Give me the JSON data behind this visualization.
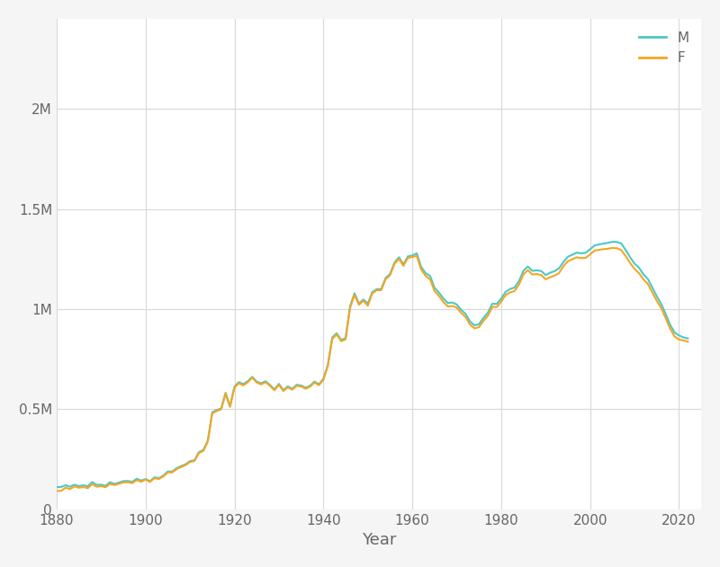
{
  "title": "",
  "xlabel": "Year",
  "ylabel": "",
  "background_color": "#f5f5f5",
  "plot_bg_color": "#ffffff",
  "grid_color": "#d8d8d8",
  "line_color_M": "#4bc8c8",
  "line_color_F": "#f5a623",
  "line_width": 1.5,
  "legend_labels": [
    "M",
    "F"
  ],
  "xlim": [
    1880,
    2025
  ],
  "ylim": [
    0,
    2450000
  ],
  "yticks": [
    0,
    500000,
    1000000,
    1500000,
    2000000
  ],
  "ytick_labels": [
    "0",
    "0.5M",
    "1M",
    "1.5M",
    "2M"
  ],
  "xticks": [
    1880,
    1900,
    1920,
    1940,
    1960,
    1980,
    2000,
    2020
  ],
  "years": [
    1880,
    1881,
    1882,
    1883,
    1884,
    1885,
    1886,
    1887,
    1888,
    1889,
    1890,
    1891,
    1892,
    1893,
    1894,
    1895,
    1896,
    1897,
    1898,
    1899,
    1900,
    1901,
    1902,
    1903,
    1904,
    1905,
    1906,
    1907,
    1908,
    1909,
    1910,
    1911,
    1912,
    1913,
    1914,
    1915,
    1916,
    1917,
    1918,
    1919,
    1920,
    1921,
    1922,
    1923,
    1924,
    1925,
    1926,
    1927,
    1928,
    1929,
    1930,
    1931,
    1932,
    1933,
    1934,
    1935,
    1936,
    1937,
    1938,
    1939,
    1940,
    1941,
    1942,
    1943,
    1944,
    1945,
    1946,
    1947,
    1948,
    1949,
    1950,
    1951,
    1952,
    1953,
    1954,
    1955,
    1956,
    1957,
    1958,
    1959,
    1960,
    1961,
    1962,
    1963,
    1964,
    1965,
    1966,
    1967,
    1968,
    1969,
    1970,
    1971,
    1972,
    1973,
    1974,
    1975,
    1976,
    1977,
    1978,
    1979,
    1980,
    1981,
    1982,
    1983,
    1984,
    1985,
    1986,
    1987,
    1988,
    1989,
    1990,
    1991,
    1992,
    1993,
    1994,
    1995,
    1996,
    1997,
    1998,
    1999,
    2000,
    2001,
    2002,
    2003,
    2004,
    2005,
    2006,
    2007,
    2008,
    2009,
    2010,
    2011,
    2012,
    2013,
    2014,
    2015,
    2016,
    2017,
    2018,
    2019,
    2020,
    2021,
    2022
  ],
  "values_M": [
    110491,
    111533,
    120068,
    112487,
    122745,
    115957,
    119861,
    115216,
    136238,
    122037,
    122742,
    117196,
    134924,
    126862,
    132973,
    140619,
    141358,
    136935,
    152475,
    143194,
    150948,
    140424,
    159666,
    155434,
    168392,
    188516,
    188657,
    205187,
    215661,
    224805,
    240413,
    245090,
    285416,
    295741,
    343337,
    484551,
    495762,
    503015,
    581806,
    514900,
    612473,
    635017,
    625229,
    639869,
    661684,
    637434,
    629609,
    639278,
    620804,
    598555,
    626574,
    595065,
    614025,
    602016,
    621937,
    618097,
    606744,
    617356,
    637498,
    624617,
    651668,
    720503,
    858900,
    879268,
    845348,
    855104,
    1013534,
    1079024,
    1027474,
    1047438,
    1027009,
    1084527,
    1099264,
    1099513,
    1155299,
    1175661,
    1232462,
    1258563,
    1222637,
    1263197,
    1267362,
    1278618,
    1210668,
    1179082,
    1165441,
    1106745,
    1082682,
    1052616,
    1030082,
    1032498,
    1022929,
    995706,
    975393,
    937282,
    918784,
    924048,
    955793,
    981685,
    1026491,
    1025540,
    1052289,
    1086013,
    1100143,
    1107539,
    1139460,
    1191283,
    1212684,
    1190543,
    1193534,
    1189978,
    1169673,
    1181261,
    1189060,
    1203423,
    1235090,
    1261339,
    1271694,
    1281900,
    1278082,
    1280879,
    1298665,
    1317039,
    1322803,
    1326413,
    1331200,
    1335490,
    1335059,
    1327869,
    1294696,
    1258474,
    1226661,
    1206174,
    1173228,
    1149888,
    1106490,
    1063742,
    1025024,
    975274,
    921698,
    882474,
    868070,
    858411,
    853060,
    846785
  ],
  "values_F": [
    90993,
    91954,
    107850,
    100312,
    114445,
    107800,
    110785,
    105386,
    125834,
    112444,
    116304,
    109842,
    126655,
    120547,
    127102,
    134239,
    135011,
    130745,
    145523,
    137015,
    148452,
    136479,
    155131,
    151009,
    163740,
    184099,
    183815,
    200782,
    210984,
    220668,
    236102,
    241296,
    281021,
    290981,
    338413,
    478543,
    490490,
    499059,
    577400,
    511394,
    608760,
    628897,
    618975,
    634399,
    657358,
    632967,
    623614,
    634434,
    615769,
    594017,
    621528,
    590157,
    609046,
    597226,
    616706,
    612944,
    601685,
    612204,
    632460,
    619622,
    646755,
    714997,
    850858,
    873133,
    839467,
    848844,
    1005680,
    1070462,
    1021297,
    1041277,
    1016774,
    1078005,
    1094019,
    1093937,
    1148741,
    1168863,
    1225451,
    1251289,
    1215597,
    1255688,
    1259568,
    1265718,
    1196578,
    1164982,
    1148671,
    1090185,
    1065797,
    1035218,
    1012781,
    1015244,
    1007058,
    980449,
    960007,
    922266,
    903568,
    909302,
    940498,
    966213,
    1010881,
    1010168,
    1036793,
    1069958,
    1082897,
    1089895,
    1122069,
    1173268,
    1194177,
    1172474,
    1174699,
    1169833,
    1148756,
    1158840,
    1166697,
    1179837,
    1214022,
    1238858,
    1248543,
    1258455,
    1253960,
    1255817,
    1272840,
    1292088,
    1295892,
    1298979,
    1301380,
    1305037,
    1303655,
    1294880,
    1264386,
    1229716,
    1200424,
    1178891,
    1148220,
    1124827,
    1082474,
    1040893,
    1004440,
    954516,
    901980,
    863099,
    847927,
    843036,
    836937
  ],
  "font_color": "#666666",
  "tick_fontsize": 11,
  "label_fontsize": 13
}
